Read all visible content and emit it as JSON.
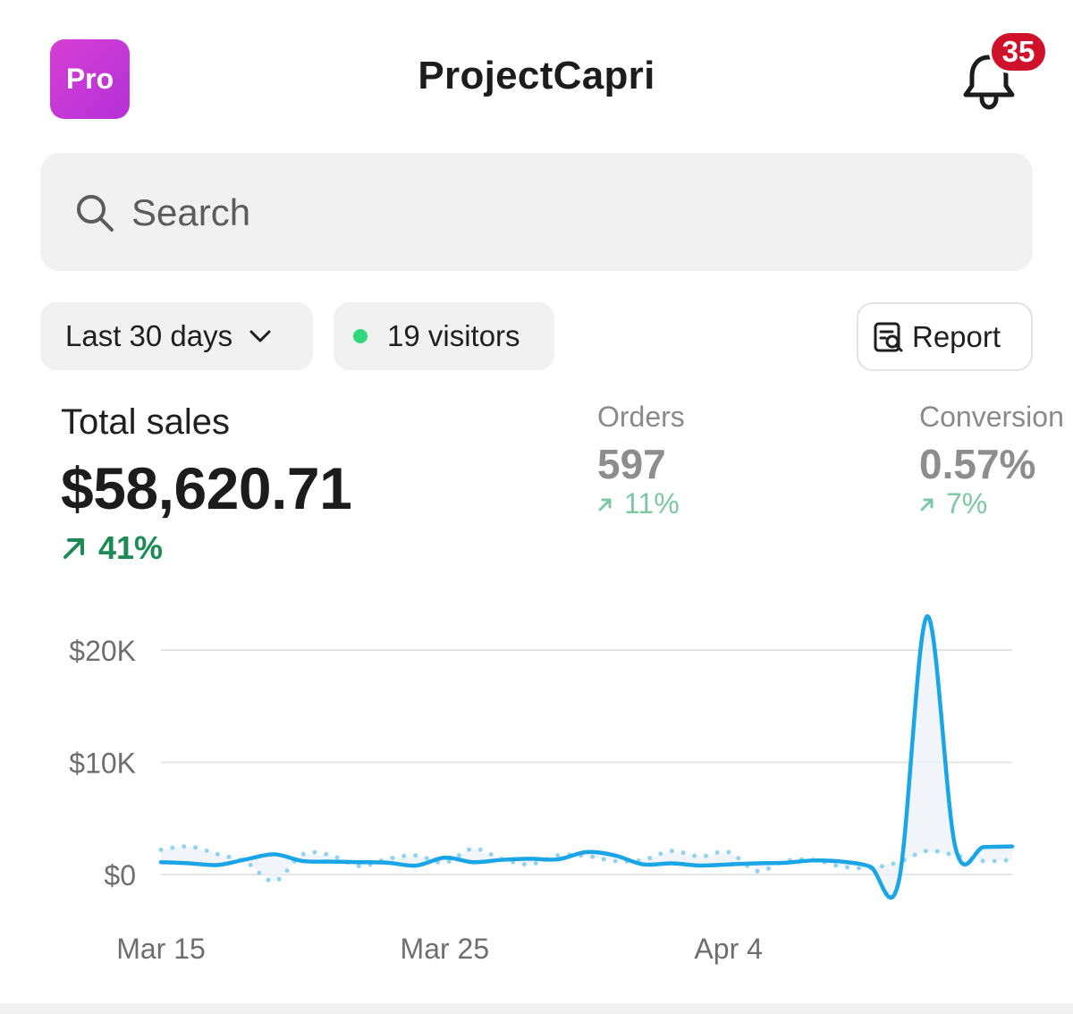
{
  "header": {
    "pro_label": "Pro",
    "app_title": "ProjectCapri",
    "notification_count": "35"
  },
  "search": {
    "placeholder": "Search"
  },
  "filters": {
    "range_label": "Last 30 days",
    "visitors_label": "19 visitors",
    "report_label": "Report"
  },
  "metrics": {
    "total_sales": {
      "label": "Total sales",
      "value": "$58,620.71",
      "change": "41%"
    },
    "orders": {
      "label": "Orders",
      "value": "597",
      "change": "11%"
    },
    "conversion": {
      "label": "Conversion",
      "value": "0.57%",
      "change": "7%"
    }
  },
  "colors": {
    "accent": "#1aa6e6",
    "badge": "#d0112b",
    "positive": "#1e8a56",
    "pro_gradient_start": "#d63fd3",
    "pro_gradient_end": "#b431d8"
  },
  "chart_data": {
    "type": "line",
    "title": "",
    "xlabel": "",
    "ylabel": "",
    "ylim": [
      0,
      20000
    ],
    "y_ticks": [
      "$20K",
      "$10K",
      "$0"
    ],
    "y_tick_values": [
      20000,
      10000,
      0
    ],
    "x_ticks": [
      "Mar 15",
      "Mar 25",
      "Apr 4"
    ],
    "x_tick_values": [
      "2024-03-15",
      "2024-03-25",
      "2024-04-04"
    ],
    "x": [
      "2024-03-15",
      "2024-03-16",
      "2024-03-17",
      "2024-03-18",
      "2024-03-19",
      "2024-03-20",
      "2024-03-21",
      "2024-03-22",
      "2024-03-23",
      "2024-03-24",
      "2024-03-25",
      "2024-03-26",
      "2024-03-27",
      "2024-03-28",
      "2024-03-29",
      "2024-03-30",
      "2024-03-31",
      "2024-04-01",
      "2024-04-02",
      "2024-04-03",
      "2024-04-04",
      "2024-04-05",
      "2024-04-06",
      "2024-04-07",
      "2024-04-08",
      "2024-04-09",
      "2024-04-10",
      "2024-04-11",
      "2024-04-12",
      "2024-04-13",
      "2024-04-14"
    ],
    "grid": true,
    "series": [
      {
        "style": "solid",
        "values": [
          1100,
          1000,
          850,
          1350,
          1800,
          1200,
          1150,
          1100,
          1050,
          800,
          1500,
          1100,
          1300,
          1400,
          1350,
          2000,
          1700,
          900,
          1000,
          800,
          900,
          1000,
          1050,
          1250,
          1150,
          700,
          -650,
          23000,
          2400,
          2450,
          2500
        ]
      },
      {
        "style": "dotted",
        "values": [
          2200,
          2500,
          1800,
          1100,
          -600,
          1800,
          1700,
          750,
          1400,
          1700,
          1050,
          2300,
          1400,
          900,
          1700,
          1650,
          1200,
          1300,
          2100,
          1600,
          2000,
          300,
          1200,
          1300,
          700,
          600,
          1100,
          2100,
          1700,
          1200,
          1300
        ]
      }
    ]
  }
}
